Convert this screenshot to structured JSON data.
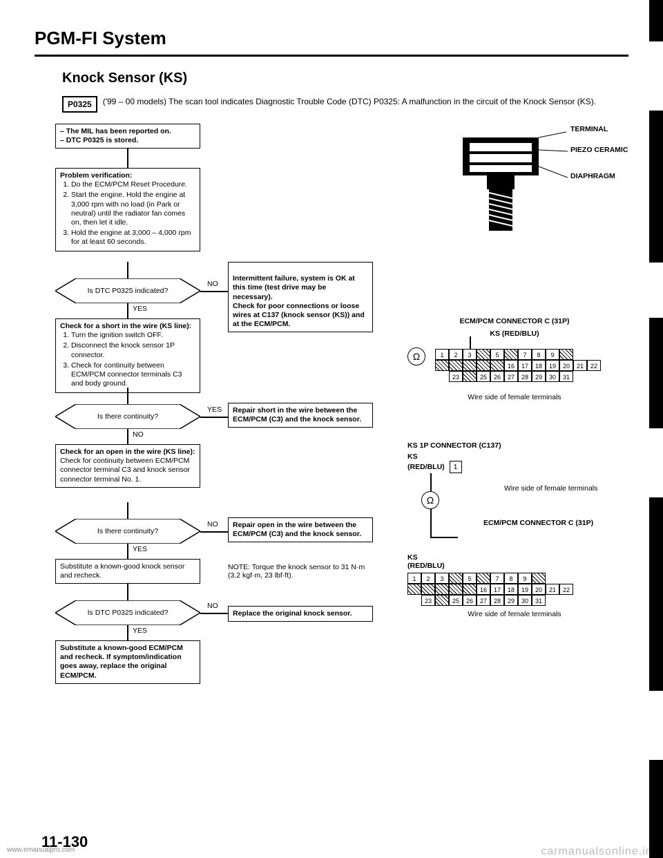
{
  "title": "PGM-FI System",
  "subtitle": "Knock Sensor (KS)",
  "dtc_code": "P0325",
  "dtc_text": "('99 – 00 models) The scan tool indicates Diagnostic Trouble Code (DTC) P0325: A malfunction in the circuit of the Knock Sensor (KS).",
  "flow": {
    "start": "– The MIL has been reported on.\n– DTC P0325 is stored.",
    "verify_title": "Problem verification:",
    "verify_steps": [
      "Do the ECM/PCM Reset Procedure.",
      "Start the engine. Hold the engine at 3,000 rpm with no load (in Park or neutral) until the radiator fan comes on, then let it idle.",
      "Hold the engine at 3,000 – 4,000 rpm for at least 60 seconds."
    ],
    "d1": "Is DTC P0325 indicated?",
    "d1_no": "Intermittent failure, system is OK at this time (test drive may be necessary).\nCheck for poor connections or loose wires at C137 (knock sensor (KS)) and at the ECM/PCM.",
    "short_title": "Check for a short in the wire (KS line):",
    "short_steps": [
      "Turn the ignition switch OFF.",
      "Disconnect the knock sensor 1P connector.",
      "Check for continuity between ECM/PCM connector terminals C3 and body ground."
    ],
    "d2": "Is there continuity?",
    "d2_yes": "Repair short in the wire between the ECM/PCM (C3) and the knock sensor.",
    "open_title": "Check for an open in the wire (KS line):",
    "open_text": "Check for continuity between ECM/PCM connector terminal C3 and knock sensor connector terminal No. 1.",
    "d3": "Is there continuity?",
    "d3_no": "Repair open in the wire between the ECM/PCM (C3) and the knock sensor.",
    "sub_text": "Substitute a known-good knock sensor and recheck.",
    "torque_note": "NOTE: Torque the knock sensor to 31 N·m (3.2 kgf·m, 23 lbf·ft).",
    "d4": "Is DTC P0325 indicated?",
    "d4_no": "Replace the original knock sensor.",
    "final": "Substitute a known-good ECM/PCM and recheck. If symptom/indication goes away, replace the original ECM/PCM.",
    "yes": "YES",
    "no": "NO"
  },
  "sensor_labels": {
    "terminal": "TERMINAL",
    "piezo": "PIEZO CERAMIC",
    "diaphragm": "DIAPHRAGM"
  },
  "connectors": {
    "c31p_title": "ECM/PCM CONNECTOR C (31P)",
    "ks_color": "KS (RED/BLU)",
    "wire_side": "Wire side of female terminals",
    "ks1p_title": "KS 1P CONNECTOR (C137)",
    "ks_label": "KS",
    "red_blu": "(RED/BLU)",
    "c31p_sub": "ECM/PCM CONNECTOR C (31P)",
    "one": "1",
    "grid_rows": [
      [
        "1",
        "2",
        "3",
        "/",
        "5",
        "/",
        "7",
        "8",
        "9",
        "/"
      ],
      [
        "/",
        "/",
        "/",
        "/",
        "/",
        "16",
        "17",
        "18",
        "19",
        "20",
        "21",
        "22"
      ],
      [
        "23",
        "/",
        "25",
        "26",
        "27",
        "28",
        "29",
        "30",
        "31"
      ]
    ]
  },
  "page_number": "11-130",
  "watermark_left": "www.emanualpro.com",
  "watermark_right": "carmanualsonline.info",
  "colors": {
    "bg": "#ffffff",
    "fg": "#000000",
    "wm": "#bbbbbb"
  }
}
